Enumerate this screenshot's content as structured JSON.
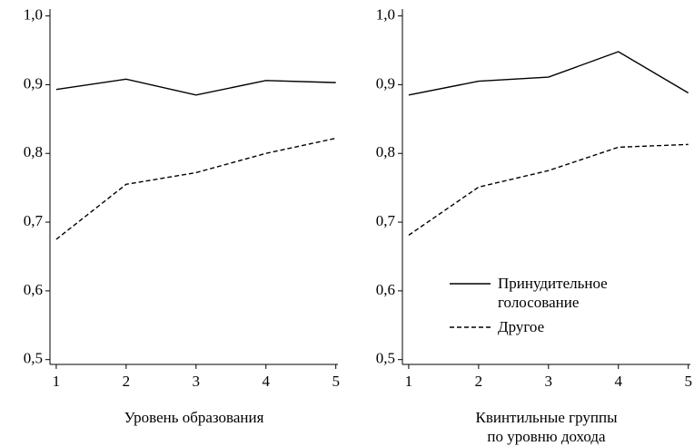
{
  "chart_data": [
    {
      "type": "line",
      "xlabel": "Уровень образования",
      "x": [
        1,
        2,
        3,
        4,
        5
      ],
      "series": [
        {
          "color": "#000000",
          "linestyle": "solid",
          "values": [
            0.893,
            0.908,
            0.885,
            0.906,
            0.903
          ]
        },
        {
          "color": "#000000",
          "linestyle": "dashed",
          "values": [
            0.675,
            0.755,
            0.772,
            0.8,
            0.822
          ]
        }
      ],
      "xlim": [
        0.91,
        5.03
      ],
      "xticks": [
        1,
        2,
        3,
        4,
        5
      ],
      "ylim": [
        0.493,
        1.01
      ],
      "yticks": [
        {
          "value": 0.5,
          "label": "0,5"
        },
        {
          "value": 0.6,
          "label": "0,6"
        },
        {
          "value": 0.7,
          "label": "0,7"
        },
        {
          "value": 0.8,
          "label": "0,8"
        },
        {
          "value": 0.9,
          "label": "0,9"
        },
        {
          "value": 1.0,
          "label": "1,0"
        }
      ]
    },
    {
      "type": "line",
      "xlabel": "Квинтильные группы по уровню дохода",
      "x": [
        1,
        2,
        3,
        4,
        5
      ],
      "series": [
        {
          "name": "Принудительное голосование",
          "color": "#000000",
          "linestyle": "solid",
          "values": [
            0.885,
            0.905,
            0.911,
            0.948,
            0.888
          ]
        },
        {
          "name": "Другое",
          "color": "#000000",
          "linestyle": "dashed",
          "values": [
            0.681,
            0.751,
            0.775,
            0.809,
            0.813
          ]
        }
      ],
      "xlim": [
        0.91,
        5.03
      ],
      "xticks": [
        1,
        2,
        3,
        4,
        5
      ],
      "ylim": [
        0.493,
        1.01
      ],
      "yticks": [
        {
          "value": 0.5,
          "label": "0,5"
        },
        {
          "value": 0.6,
          "label": "0,6"
        },
        {
          "value": 0.7,
          "label": "0,7"
        },
        {
          "value": 0.8,
          "label": "0,8"
        },
        {
          "value": 0.9,
          "label": "0,9"
        },
        {
          "value": 1.0,
          "label": "1,0"
        }
      ],
      "legend": "center right"
    }
  ]
}
